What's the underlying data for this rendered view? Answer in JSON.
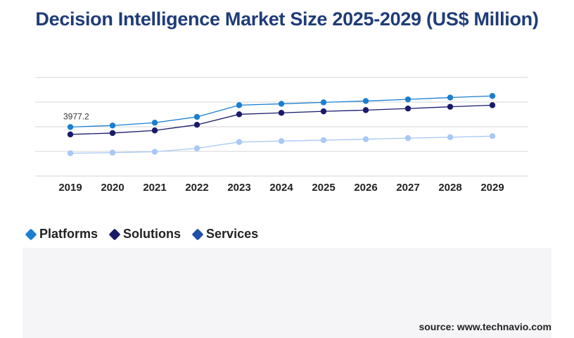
{
  "title": "Decision Intelligence Market Size 2025-2029 (US$ Million)",
  "source": "source: www.technavio.com",
  "chart_data": {
    "type": "line",
    "title": "Decision Intelligence Market Size 2025-2029 (US$ Million)",
    "xlabel": "",
    "ylabel": "",
    "x": [
      "2019",
      "2020",
      "2021",
      "2022",
      "2023",
      "2024",
      "2025",
      "2026",
      "2027",
      "2028",
      "2029"
    ],
    "grid": true,
    "legend_position": "bottom-left",
    "series": [
      {
        "name": "Platforms",
        "color": "#1a7fd0",
        "values": [
          3977.2,
          4100,
          4330,
          4800,
          5750,
          5860,
          5980,
          6090,
          6220,
          6370,
          6500
        ]
      },
      {
        "name": "Solutions",
        "color": "#1a1a6b",
        "values": [
          3380,
          3490,
          3700,
          4160,
          5010,
          5130,
          5250,
          5350,
          5480,
          5620,
          5750
        ]
      },
      {
        "name": "Services",
        "color": "#a9c8f5",
        "values": [
          1850,
          1900,
          1970,
          2250,
          2760,
          2840,
          2910,
          2990,
          3080,
          3150,
          3240
        ]
      }
    ],
    "annotations": [
      {
        "series": "Platforms",
        "x": "2019",
        "label": "3977.2"
      }
    ],
    "legend": [
      {
        "name": "Platforms",
        "color": "#1a7fd0"
      },
      {
        "name": "Solutions",
        "color": "#1a1a6b"
      },
      {
        "name": "Services",
        "color": "#1f4fa8"
      }
    ]
  }
}
